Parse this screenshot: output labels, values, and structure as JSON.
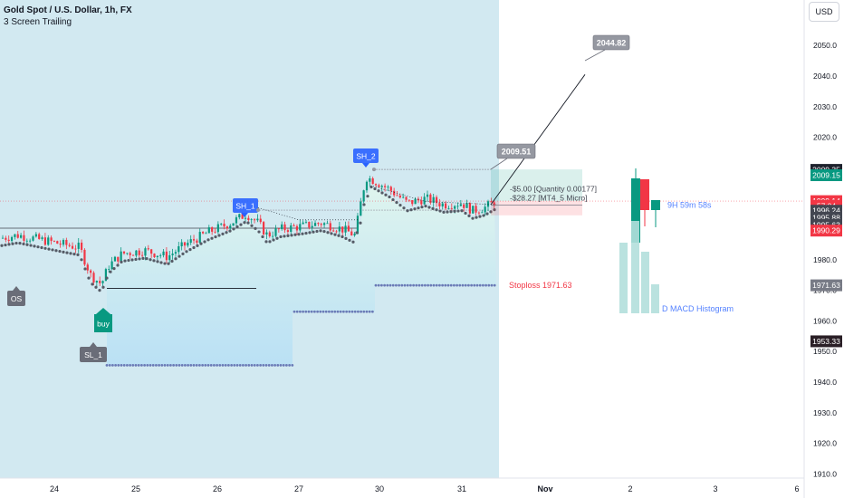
{
  "header": {
    "title": "Gold Spot / U.S. Dollar, 1h, FX",
    "indicator": "3 Screen Trailing"
  },
  "currency_button": "USD",
  "chart_data": {
    "type": "candlestick",
    "x_ticks": [
      "24",
      "25",
      "26",
      "27",
      "30",
      "31",
      "Nov",
      "2",
      "3",
      "6"
    ],
    "y_ticks": [
      1910,
      1920,
      1930,
      1940,
      1950,
      1960,
      1970,
      1980,
      1990,
      2000,
      2010,
      2020,
      2030,
      2040,
      2050
    ],
    "ylim": [
      1908,
      2070
    ],
    "price_badges": [
      {
        "value": "2009.35",
        "bg": "#1e222d",
        "fg": "#ffffff",
        "y": 2009.35
      },
      {
        "value": "2009.15",
        "bg": "#089981",
        "fg": "#ffffff",
        "y": 2007.6
      },
      {
        "value": "1999.14",
        "bg": "#f23645",
        "fg": "#ffffff",
        "y": 1999.14
      },
      {
        "value": "57:04",
        "bg": "#f23645",
        "fg": "#ffffff",
        "y": 1997.6
      },
      {
        "value": "1996.24",
        "bg": "#434651",
        "fg": "#ffffff",
        "y": 1996.0
      },
      {
        "value": "1995.88",
        "bg": "#434651",
        "fg": "#ffffff",
        "y": 1993.7
      },
      {
        "value": "1995.63",
        "bg": "#434651",
        "fg": "#ffffff",
        "y": 1991.4
      },
      {
        "value": "1990.29",
        "bg": "#f23645",
        "fg": "#ffffff",
        "y": 1989.5
      },
      {
        "value": "1971.63",
        "bg": "#787b86",
        "fg": "#ffffff",
        "y": 1971.63
      },
      {
        "value": "1953.33",
        "bg": "#2a1f26",
        "fg": "#ffffff",
        "y": 1953.33
      }
    ],
    "labels": {
      "sh2": "SH_2",
      "sh1": "SH_1",
      "sl1": "SL_1",
      "os": "OS",
      "target_high": "2044.82",
      "target_mid": "2009.51",
      "position_line1": "-$5.00 [Quantity 0.00177]",
      "position_line2": "-$28.27 [MT4_5 Micro]",
      "stoploss": "Stoploss  1971.63",
      "timer": "9H 59m 58s",
      "macd": "D MACD Histogram",
      "buy": "buy"
    },
    "levels": {
      "sh2": 2009.5,
      "sh1": 1996.2,
      "os": 1990.3,
      "sl1": 1970.6,
      "stoploss": 1971.63,
      "step1": 1945.5,
      "step2": 1963.0
    },
    "colors": {
      "up": "#089981",
      "down": "#f23645",
      "trail": "#555b66",
      "stop_dots": "#6a7ab6",
      "shade": "#d2e9f1",
      "macd": "#b2dfdb"
    }
  }
}
